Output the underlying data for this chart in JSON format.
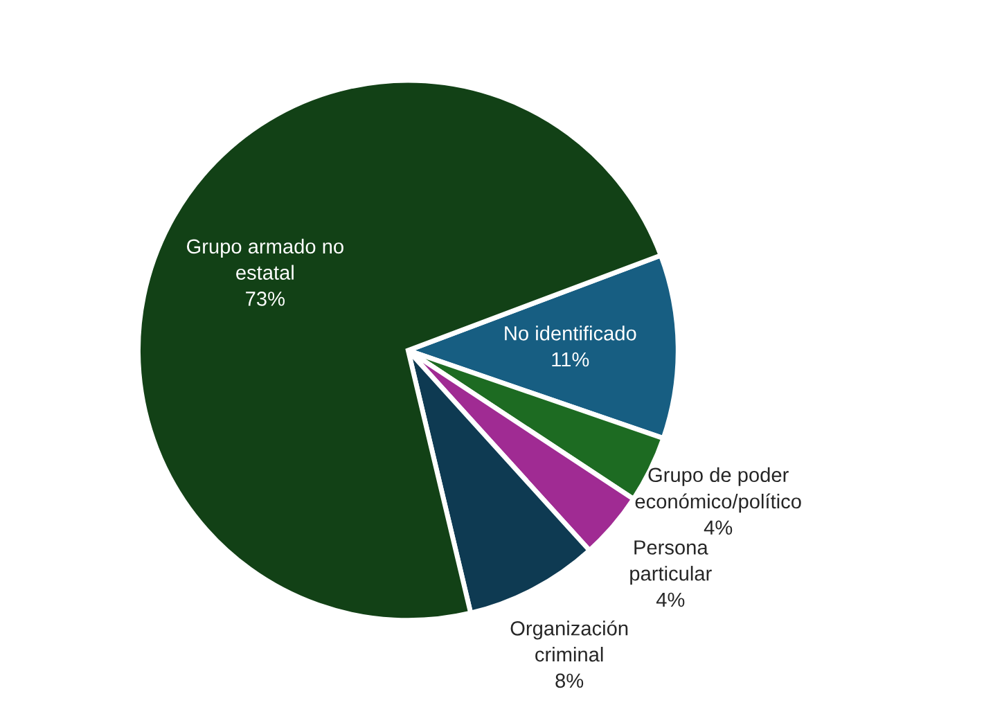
{
  "chart_data": {
    "type": "pie",
    "categories": [
      "No identificado",
      "Grupo de poder económico/político",
      "Persona particular",
      "Organización criminal",
      "Grupo armado no estatal"
    ],
    "values": [
      11,
      4,
      4,
      8,
      73
    ],
    "colors": [
      "#175e82",
      "#1d6b22",
      "#a02b93",
      "#0e3a52",
      "#124116"
    ],
    "value_labels": [
      "11%",
      "4%",
      "4%",
      "8%",
      "73%"
    ]
  }
}
